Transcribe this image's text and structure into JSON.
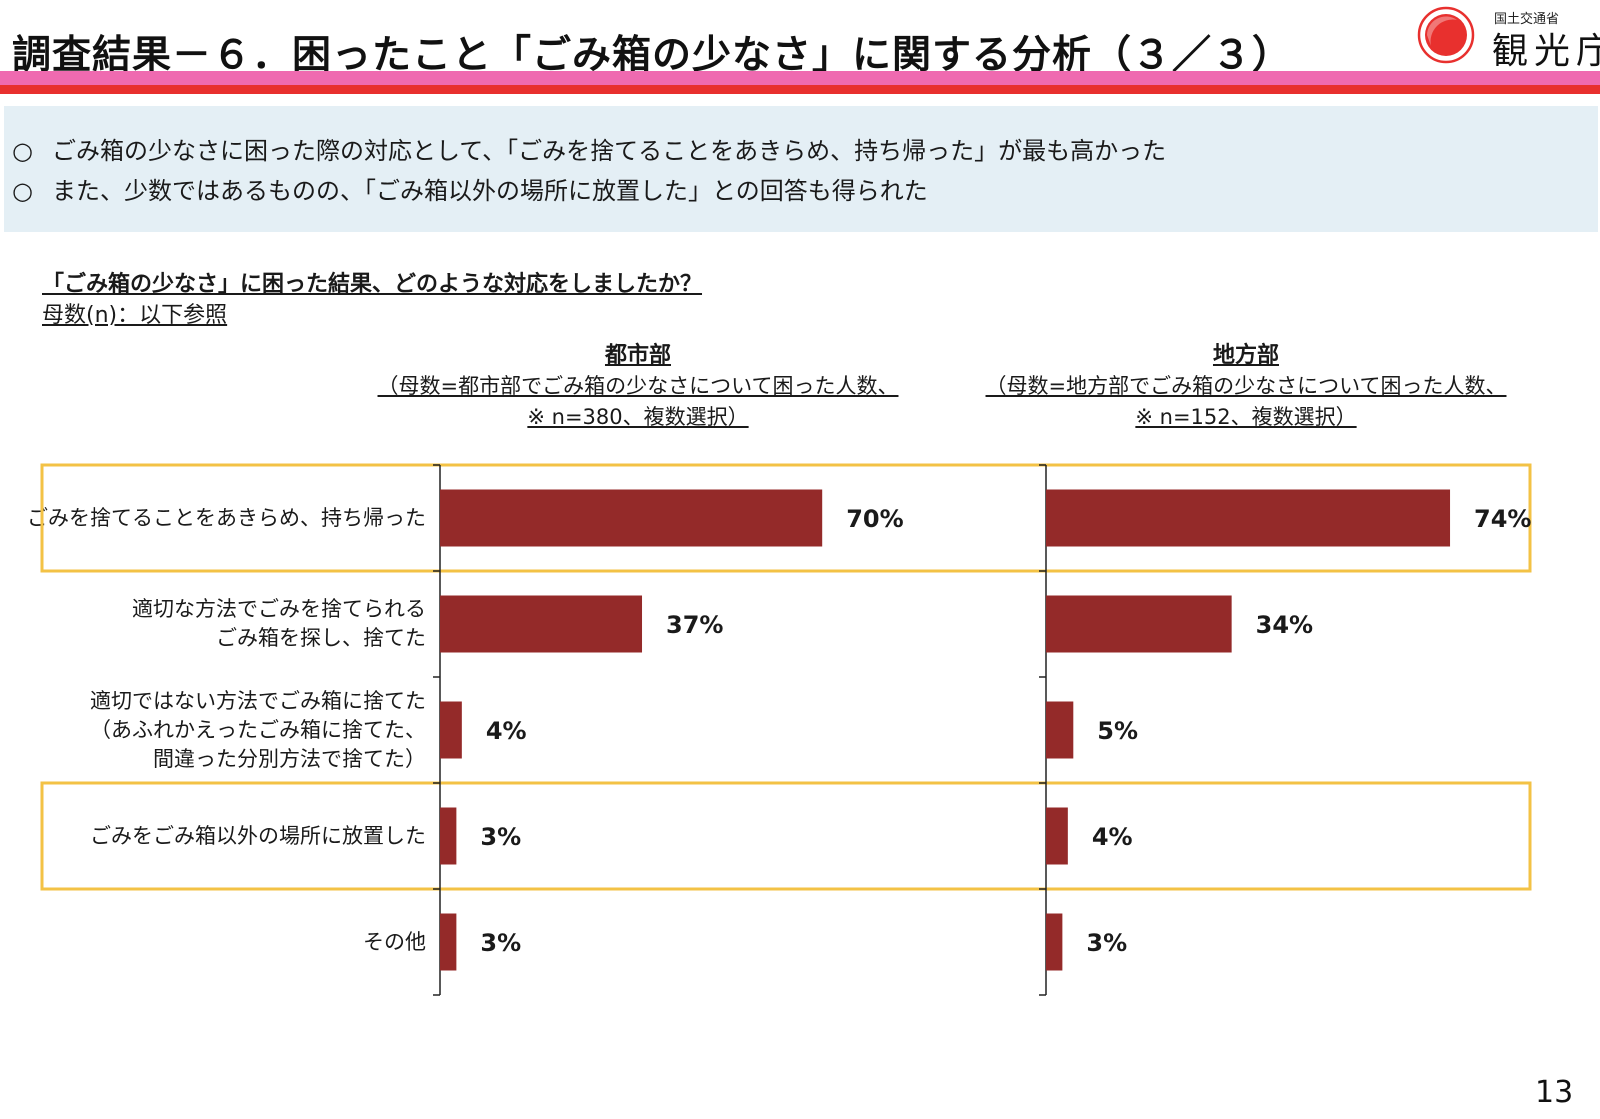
{
  "header": {
    "title": "調査結果－６．困ったこと「ごみ箱の少なさ」に関する分析（３／３）",
    "logo_small": "国土交通省",
    "logo_big": "観光庁"
  },
  "summary": {
    "items": [
      "ごみ箱の少なさに困った際の対応として、「ごみを捨てることをあきらめ、持ち帰った」が最も高かった",
      "また、少数ではあるものの、「ごみ箱以外の場所に放置した」との回答も得られた"
    ],
    "bullet": "○"
  },
  "question": "「ごみ箱の少なさ」に困った結果、どのような対応をしましたか？",
  "base_note": "母数(n)：以下参照",
  "columns": [
    {
      "title": "都市部",
      "sub1": "（母数=都市部でごみ箱の少なさについて困った人数、",
      "sub2": "※ n=380、複数選択）"
    },
    {
      "title": "地方部",
      "sub1": "（母数=地方部でごみ箱の少なさについて困った人数、",
      "sub2": "※ n=152、複数選択）"
    }
  ],
  "categories": [
    [
      "ごみを捨てることをあきらめ、持ち帰った"
    ],
    [
      "適切な方法でごみを捨てられる",
      "ごみ箱を探し、捨てた"
    ],
    [
      "適切ではない方法でごみ箱に捨てた",
      "（あふれかえったごみ箱に捨てた、",
      "間違った分別方法で捨てた）"
    ],
    [
      "ごみをごみ箱以外の場所に放置した"
    ],
    [
      "その他"
    ]
  ],
  "highlight_rows": [
    0,
    3
  ],
  "colors": {
    "bar": "#942a29",
    "highlight": "#f3c245",
    "title_pink": "#ef6ab0",
    "title_red": "#e8302e",
    "summary_bg": "#e4eff5"
  },
  "chart_data": [
    {
      "type": "bar",
      "orientation": "horizontal",
      "title": "都市部",
      "categories": [
        "ごみを捨てることをあきらめ、持ち帰った",
        "適切な方法でごみを捨てられるごみ箱を探し、捨てた",
        "適切ではない方法でごみ箱に捨てた（あふれかえったごみ箱に捨てた、間違った分別方法で捨てた）",
        "ごみをごみ箱以外の場所に放置した",
        "その他"
      ],
      "values": [
        70,
        37,
        4,
        3,
        3
      ],
      "value_labels": [
        "70%",
        "37%",
        "4%",
        "3%",
        "3%"
      ],
      "unit": "%",
      "xlim": [
        0,
        100
      ]
    },
    {
      "type": "bar",
      "orientation": "horizontal",
      "title": "地方部",
      "categories": [
        "ごみを捨てることをあきらめ、持ち帰った",
        "適切な方法でごみを捨てられるごみ箱を探し、捨てた",
        "適切ではない方法でごみ箱に捨てた（あふれかえったごみ箱に捨てた、間違った分別方法で捨てた）",
        "ごみをごみ箱以外の場所に放置した",
        "その他"
      ],
      "values": [
        74,
        34,
        5,
        4,
        3
      ],
      "value_labels": [
        "74%",
        "34%",
        "5%",
        "4%",
        "3%"
      ],
      "unit": "%",
      "xlim": [
        0,
        100
      ]
    }
  ],
  "page_number": "13"
}
